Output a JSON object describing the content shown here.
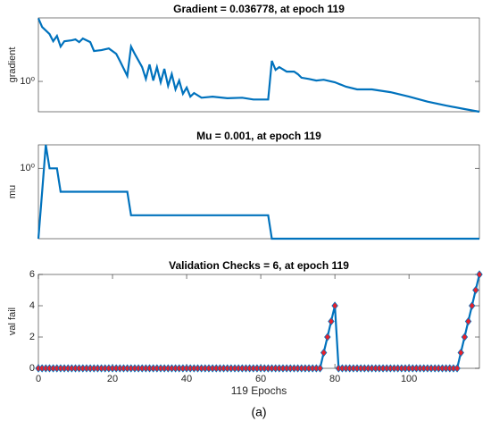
{
  "chart_data": [
    {
      "type": "line",
      "title": "Gradient = 0.036778, at epoch 119",
      "ylabel": "gradient",
      "yscale": "log",
      "xlim": [
        0,
        119
      ],
      "ylim": [
        0.036778,
        1000
      ],
      "yticks": [
        {
          "value": 1,
          "label": "10⁰"
        }
      ],
      "series": [
        {
          "name": "gradient",
          "color": "#0072bd",
          "x": [
            0,
            1,
            3,
            4,
            5,
            6,
            7,
            9,
            10,
            11,
            12,
            14,
            15,
            17,
            19,
            21,
            22,
            24,
            25,
            26,
            28,
            29,
            30,
            31,
            32,
            33,
            34,
            35,
            36,
            37,
            38,
            39,
            40,
            41,
            42,
            44,
            47,
            51,
            55,
            58,
            62,
            63,
            64,
            65,
            67,
            69,
            70,
            71,
            73,
            75,
            77,
            80,
            83,
            86,
            90,
            95,
            100,
            105,
            110,
            115,
            119
          ],
          "values": [
            950,
            372,
            172,
            79,
            142,
            44,
            79,
            87,
            96,
            72,
            106,
            72,
            27,
            30,
            36,
            20,
            9.3,
            1.8,
            44,
            20,
            4.7,
            1.3,
            6.3,
            1.1,
            4.7,
            0.91,
            3.9,
            0.62,
            2.2,
            0.42,
            1.1,
            0.26,
            0.51,
            0.19,
            0.28,
            0.17,
            0.19,
            0.16,
            0.17,
            0.14,
            0.14,
            9.3,
            3.5,
            4.7,
            2.9,
            2.9,
            2.2,
            1.5,
            1.3,
            1.1,
            1.2,
            0.91,
            0.56,
            0.42,
            0.42,
            0.31,
            0.19,
            0.11,
            0.072,
            0.049,
            0.036778
          ]
        }
      ]
    },
    {
      "type": "line",
      "title": "Mu = 0.001, at epoch 119",
      "ylabel": "mu",
      "yscale": "log",
      "xlim": [
        0,
        119
      ],
      "ylim": [
        0.001,
        10
      ],
      "yticks": [
        {
          "value": 1,
          "label": "10⁰"
        }
      ],
      "series": [
        {
          "name": "mu",
          "color": "#0072bd",
          "x": [
            0,
            1,
            2,
            3,
            5,
            6,
            24,
            25,
            62,
            63,
            119
          ],
          "values": [
            0.001,
            0.1,
            10,
            1,
            1,
            0.1,
            0.1,
            0.01,
            0.01,
            0.001,
            0.001
          ]
        }
      ]
    },
    {
      "type": "line",
      "title": "Validation Checks = 6, at epoch 119",
      "ylabel": "val fail",
      "xlabel": "119 Epochs",
      "xlim": [
        0,
        119
      ],
      "ylim": [
        0,
        6
      ],
      "yticks": [
        0,
        2,
        4,
        6
      ],
      "xticks": [
        0,
        20,
        40,
        60,
        80,
        100
      ],
      "series": [
        {
          "name": "val fail",
          "color": "#0072bd",
          "marker": "diamond",
          "marker_color": "#e8202a",
          "x": [
            0,
            1,
            2,
            3,
            4,
            5,
            6,
            7,
            8,
            9,
            10,
            11,
            12,
            13,
            14,
            15,
            16,
            17,
            18,
            19,
            20,
            21,
            22,
            23,
            24,
            25,
            26,
            27,
            28,
            29,
            30,
            31,
            32,
            33,
            34,
            35,
            36,
            37,
            38,
            39,
            40,
            41,
            42,
            43,
            44,
            45,
            46,
            47,
            48,
            49,
            50,
            51,
            52,
            53,
            54,
            55,
            56,
            57,
            58,
            59,
            60,
            61,
            62,
            63,
            64,
            65,
            66,
            67,
            68,
            69,
            70,
            71,
            72,
            73,
            74,
            75,
            76,
            77,
            78,
            79,
            80,
            81,
            82,
            83,
            84,
            85,
            86,
            87,
            88,
            89,
            90,
            91,
            92,
            93,
            94,
            95,
            96,
            97,
            98,
            99,
            100,
            101,
            102,
            103,
            104,
            105,
            106,
            107,
            108,
            109,
            110,
            111,
            112,
            113,
            114,
            115,
            116,
            117,
            118,
            119
          ],
          "values": [
            0,
            0,
            0,
            0,
            0,
            0,
            0,
            0,
            0,
            0,
            0,
            0,
            0,
            0,
            0,
            0,
            0,
            0,
            0,
            0,
            0,
            0,
            0,
            0,
            0,
            0,
            0,
            0,
            0,
            0,
            0,
            0,
            0,
            0,
            0,
            0,
            0,
            0,
            0,
            0,
            0,
            0,
            0,
            0,
            0,
            0,
            0,
            0,
            0,
            0,
            0,
            0,
            0,
            0,
            0,
            0,
            0,
            0,
            0,
            0,
            0,
            0,
            0,
            0,
            0,
            0,
            0,
            0,
            0,
            0,
            0,
            0,
            0,
            0,
            0,
            0,
            0,
            1,
            2,
            3,
            4,
            0,
            0,
            0,
            0,
            0,
            0,
            0,
            0,
            0,
            0,
            0,
            0,
            0,
            0,
            0,
            0,
            0,
            0,
            0,
            0,
            0,
            0,
            0,
            0,
            0,
            0,
            0,
            0,
            0,
            0,
            0,
            0,
            0,
            1,
            2,
            3,
            4,
            5,
            6
          ]
        }
      ]
    }
  ],
  "caption": "(a)"
}
